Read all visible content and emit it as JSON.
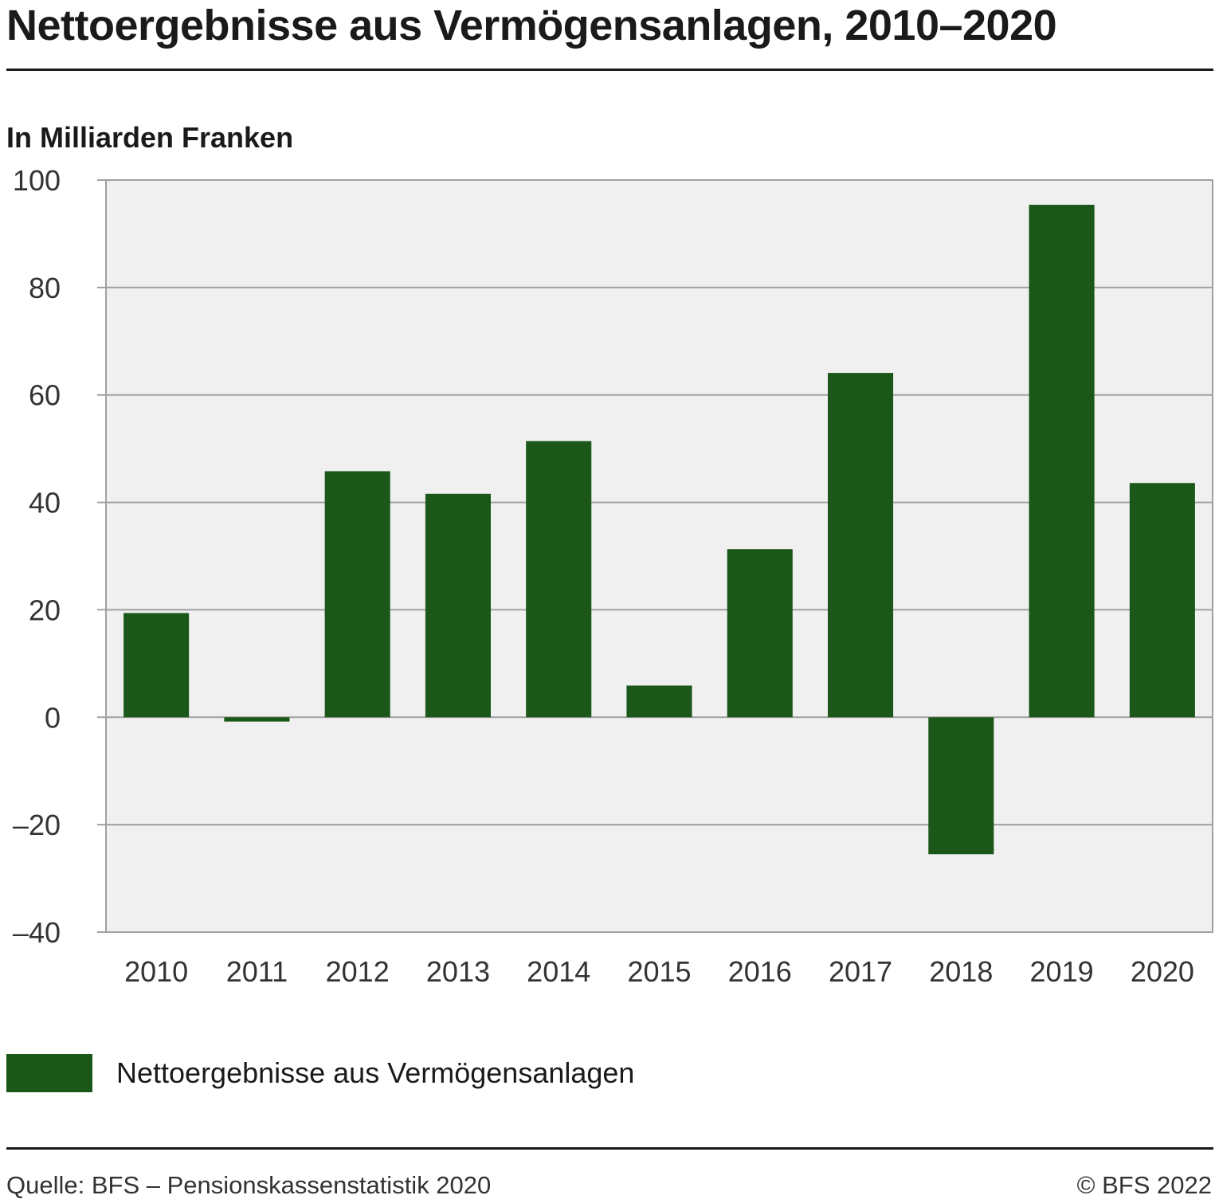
{
  "title": "Nettoergebnisse aus Vermögensanlagen, 2010–2020",
  "colors": {
    "bar": "#1a5718",
    "plot_bg": "#f0f0f0",
    "grid": "#a0a0a0"
  },
  "chart_data": {
    "type": "bar",
    "title": "Nettoergebnisse aus Vermögensanlagen, 2010–2020",
    "ylabel": "In Milliarden Franken",
    "xlabel": "",
    "ylim": [
      -40,
      100
    ],
    "yticks": [
      100,
      80,
      60,
      40,
      20,
      0,
      -20,
      -40
    ],
    "ytick_labels": [
      "100",
      "80",
      "60",
      "40",
      "20",
      "0",
      "–20",
      "–40"
    ],
    "grid": true,
    "legend_position": "bottom-left",
    "categories": [
      "2010",
      "2011",
      "2012",
      "2013",
      "2014",
      "2015",
      "2016",
      "2017",
      "2018",
      "2019",
      "2020"
    ],
    "series": [
      {
        "name": "Nettoergebnisse aus Vermögensanlagen",
        "values": [
          19.4,
          -0.8,
          45.8,
          41.6,
          51.4,
          5.9,
          31.3,
          64.1,
          -25.5,
          95.4,
          43.6
        ]
      }
    ]
  },
  "footer": {
    "source": "Quelle: BFS – Pensionskassenstatistik 2020",
    "copyright": "© BFS 2022"
  }
}
